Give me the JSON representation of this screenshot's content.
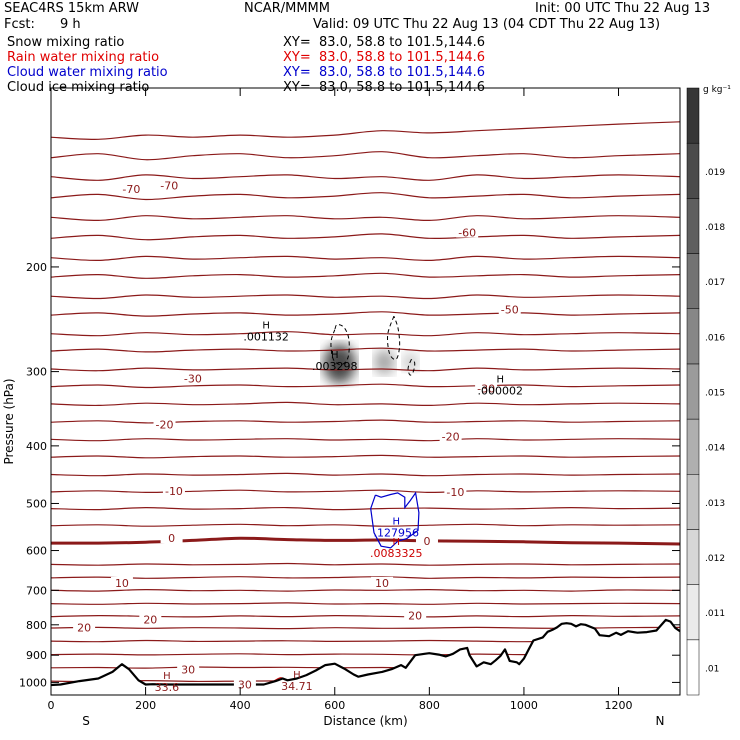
{
  "header": {
    "model": "SEAC4RS 15km ARW",
    "center": "NCAR/MMMM",
    "init": "Init: 00 UTC Thu 22 Aug 13",
    "fcst_label": "Fcst:",
    "fcst_value": "9 h",
    "valid": "Valid: 09 UTC Thu 22 Aug 13 (04 CDT Thu 22 Aug 13)",
    "fields": [
      {
        "label": "Snow mixing ratio",
        "xy": "XY=  83.0, 58.8 to 101.5,144.6",
        "color": "#000000"
      },
      {
        "label": "Rain water mixing ratio",
        "xy": "XY=  83.0, 58.8 to 101.5,144.6",
        "color": "#e00000"
      },
      {
        "label": "Cloud water mixing ratio",
        "xy": "XY=  83.0, 58.8 to 101.5,144.6",
        "color": "#0000cc"
      },
      {
        "label": "Cloud ice mixing ratio",
        "xy": "XY=  83.0, 58.8 to 101.5,144.6",
        "color": "#000000"
      }
    ]
  },
  "chart_data": {
    "type": "contour",
    "xlabel": "Distance (km)",
    "ylabel": "Pressure (hPa)",
    "xlim": [
      0,
      1330
    ],
    "ylim": [
      1050,
      100
    ],
    "y_scale": "log",
    "x_ticks": [
      0,
      200,
      400,
      600,
      800,
      1000,
      1200
    ],
    "y_ticks": [
      200,
      300,
      400,
      500,
      600,
      700,
      800,
      900,
      1000
    ],
    "x_end_labels": {
      "left": "S",
      "right": "N"
    },
    "colorbar": {
      "unit": "g kg⁻¹",
      "ticks": [
        ".01",
        ".011",
        ".012",
        ".013",
        ".014",
        ".015",
        ".016",
        ".017",
        ".018",
        ".019"
      ],
      "range": [
        0.01,
        0.0205
      ]
    },
    "colors": {
      "isotherm": "#8b1a1a",
      "rain": "#cc0000",
      "cloud_water": "#0000cc",
      "terrain": "#000000"
    },
    "isotherms": [
      {
        "value": 30,
        "p": [
          1045,
          1043,
          1046,
          1044,
          1043,
          1044,
          1042,
          1045,
          1046,
          1044,
          1045,
          1043,
          1044,
          1042
        ]
      },
      {
        "value": 30,
        "p": [
          995,
          997,
          993,
          996,
          995,
          994,
          996,
          995,
          993,
          994,
          996,
          995,
          994,
          995
        ]
      },
      {
        "value": 30,
        "p": [
          945,
          944,
          946,
          942,
          944,
          943,
          945,
          944,
          946,
          944,
          943,
          944,
          945,
          944
        ]
      },
      {
        "value": 20,
        "p": [
          898,
          896,
          899,
          897,
          895,
          898,
          896,
          897,
          899,
          896,
          898,
          896,
          897,
          896
        ]
      },
      {
        "value": 20,
        "p": [
          852,
          854,
          850,
          853,
          852,
          851,
          853,
          852,
          850,
          852,
          854,
          851,
          852,
          851
        ]
      },
      {
        "value": 20,
        "p": [
          810,
          808,
          811,
          809,
          810,
          812,
          809,
          811,
          810,
          808,
          810,
          811,
          809,
          808
        ]
      },
      {
        "value": 10,
        "p": [
          775,
          772,
          774,
          776,
          773,
          775,
          772,
          774,
          776,
          773,
          775,
          772,
          774,
          773
        ]
      },
      {
        "value": 10,
        "p": [
          737,
          739,
          736,
          738,
          737,
          735,
          738,
          737,
          739,
          736,
          738,
          737,
          736,
          737
        ]
      },
      {
        "value": 10,
        "p": [
          700,
          702,
          698,
          701,
          700,
          702,
          699,
          700,
          698,
          701,
          700,
          702,
          699,
          700
        ]
      },
      {
        "value": 10,
        "p": [
          667,
          665,
          668,
          666,
          664,
          667,
          666,
          664,
          668,
          666,
          667,
          665,
          666,
          665
        ]
      },
      {
        "value": 10,
        "p": [
          633,
          635,
          632,
          634,
          633,
          631,
          634,
          632,
          635,
          633,
          632,
          634,
          633,
          632
        ]
      },
      {
        "value": 0,
        "p": [
          583,
          583,
          581,
          577,
          572,
          575,
          577,
          576,
          578,
          579,
          580,
          582,
          583,
          585
        ],
        "bold": true
      },
      {
        "value": -10,
        "p": [
          545,
          543,
          546,
          544,
          542,
          545,
          543,
          546,
          544,
          542,
          545,
          543,
          544,
          543
        ]
      },
      {
        "value": -10,
        "p": [
          510,
          512,
          508,
          511,
          510,
          508,
          512,
          510,
          509,
          511,
          510,
          508,
          510,
          509
        ]
      },
      {
        "value": -10,
        "p": [
          478,
          476,
          479,
          477,
          475,
          478,
          477,
          475,
          479,
          476,
          478,
          477,
          476,
          477
        ]
      },
      {
        "value": -10,
        "p": [
          447,
          449,
          446,
          448,
          447,
          445,
          448,
          446,
          449,
          447,
          446,
          448,
          447,
          446
        ]
      },
      {
        "value": -20,
        "p": [
          418,
          416,
          419,
          417,
          416,
          418,
          417,
          415,
          418,
          417,
          416,
          418,
          417,
          416
        ]
      },
      {
        "value": -20,
        "p": [
          390,
          392,
          389,
          391,
          390,
          389,
          391,
          390,
          392,
          389,
          391,
          390,
          389,
          390
        ]
      },
      {
        "value": -20,
        "p": [
          365,
          363,
          366,
          364,
          363,
          365,
          364,
          362,
          365,
          364,
          363,
          365,
          364,
          363
        ]
      },
      {
        "value": -30,
        "p": [
          340,
          342,
          339,
          341,
          340,
          338,
          341,
          340,
          342,
          339,
          341,
          340,
          339,
          340
        ]
      },
      {
        "value": -30,
        "p": [
          318,
          316,
          319,
          317,
          316,
          318,
          317,
          315,
          318,
          317,
          316,
          318,
          317,
          316
        ]
      },
      {
        "value": -30,
        "p": [
          297,
          299,
          296,
          298,
          297,
          296,
          298,
          297,
          299,
          296,
          298,
          297,
          296,
          297
        ]
      },
      {
        "value": -40,
        "p": [
          277,
          275,
          278,
          276,
          275,
          277,
          276,
          274,
          277,
          276,
          275,
          277,
          276,
          275
        ]
      },
      {
        "value": -40,
        "p": [
          259,
          261,
          258,
          260,
          259,
          257,
          260,
          259,
          261,
          258,
          260,
          259,
          258,
          259
        ]
      },
      {
        "value": -50,
        "p": [
          241,
          239,
          242,
          240,
          239,
          241,
          240,
          238,
          241,
          240,
          239,
          241,
          240,
          239
        ]
      },
      {
        "value": -50,
        "p": [
          224,
          226,
          223,
          225,
          224,
          223,
          225,
          224,
          226,
          223,
          225,
          224,
          223,
          224
        ]
      },
      {
        "value": -60,
        "p": [
          208,
          206,
          209,
          207,
          206,
          208,
          207,
          205,
          208,
          207,
          206,
          208,
          207,
          206
        ]
      },
      {
        "value": -60,
        "p": [
          193,
          195,
          192,
          194,
          193,
          192,
          194,
          193,
          195,
          192,
          194,
          193,
          192,
          193
        ]
      },
      {
        "value": -60,
        "p": [
          179,
          177,
          180,
          178,
          177,
          179,
          178,
          176,
          179,
          178,
          177,
          179,
          178,
          177
        ]
      },
      {
        "value": -70,
        "p": [
          165,
          167,
          164,
          166,
          165,
          164,
          166,
          165,
          167,
          164,
          166,
          165,
          164,
          165
        ]
      },
      {
        "value": -70,
        "p": [
          153,
          151,
          154,
          152,
          151,
          153,
          152,
          150,
          153,
          152,
          151,
          153,
          152,
          151
        ]
      },
      {
        "value": -70,
        "p": [
          141,
          143,
          140,
          142,
          141,
          140,
          142,
          141,
          143,
          140,
          142,
          141,
          140,
          141
        ]
      },
      {
        "value": -70,
        "p": [
          131,
          129,
          132,
          130,
          129,
          131,
          130,
          128,
          131,
          130,
          129,
          131,
          130,
          129
        ]
      },
      {
        "value": -70,
        "p": [
          121,
          122,
          120,
          121,
          120,
          121,
          120,
          118,
          119,
          118,
          117,
          116,
          115,
          114
        ]
      }
    ],
    "isotherm_x": [
      0,
      100,
      200,
      300,
      400,
      500,
      600,
      700,
      800,
      900,
      1000,
      1100,
      1200,
      1330
    ],
    "isotherm_labels": [
      {
        "text": "-70",
        "x": 170,
        "p": 148
      },
      {
        "text": "-70",
        "x": 250,
        "p": 146
      },
      {
        "text": "-60",
        "x": 880,
        "p": 175
      },
      {
        "text": "-50",
        "x": 970,
        "p": 236
      },
      {
        "text": "-30",
        "x": 300,
        "p": 308
      },
      {
        "text": "-30",
        "x": 920,
        "p": 320
      },
      {
        "text": "-20",
        "x": 240,
        "p": 368
      },
      {
        "text": "-20",
        "x": 845,
        "p": 386
      },
      {
        "text": "-10",
        "x": 260,
        "p": 476
      },
      {
        "text": "-10",
        "x": 855,
        "p": 478
      },
      {
        "text": "0",
        "x": 255,
        "p": 572
      },
      {
        "text": "0",
        "x": 795,
        "p": 578
      },
      {
        "text": "10",
        "x": 150,
        "p": 680
      },
      {
        "text": "10",
        "x": 700,
        "p": 680
      },
      {
        "text": "20",
        "x": 70,
        "p": 808
      },
      {
        "text": "20",
        "x": 210,
        "p": 784
      },
      {
        "text": "20",
        "x": 770,
        "p": 772
      },
      {
        "text": "30",
        "x": 290,
        "p": 952
      },
      {
        "text": "30",
        "x": 410,
        "p": 1008
      }
    ],
    "snow_contours": [
      {
        "x": [
          600,
          592,
          597,
          614,
          628,
          630,
          620,
          605,
          600
        ],
        "p": [
          255,
          268,
          286,
          292,
          284,
          265,
          253,
          250,
          255
        ]
      },
      {
        "x": [
          725,
          712,
          716,
          730,
          737,
          734,
          725
        ],
        "p": [
          242,
          260,
          280,
          286,
          272,
          254,
          242
        ]
      },
      {
        "x": [
          762,
          755,
          759,
          766,
          769,
          762
        ],
        "p": [
          286,
          296,
          304,
          300,
          290,
          286
        ]
      }
    ],
    "cloud_water_contour": {
      "x": [
        686,
        676,
        683,
        698,
        718,
        734,
        752,
        776,
        778,
        771,
        760,
        748,
        748,
        733,
        718,
        698,
        686
      ],
      "p": [
        484,
        510,
        560,
        590,
        594,
        578,
        573,
        555,
        518,
        480,
        494,
        508,
        488,
        480,
        483,
        488,
        484
      ]
    },
    "rain_contour": {
      "x": [
        455,
        468,
        485,
        498,
        490,
        478,
        462
      ],
      "p": [
        1010,
        998,
        982,
        992,
        1000,
        1004,
        1010
      ]
    },
    "shading_blobs": [
      {
        "x": 610,
        "p": 291,
        "value": 0.019
      },
      {
        "x": 705,
        "p": 289,
        "value": 0.014
      },
      {
        "x": 760,
        "p": 289,
        "value": 0.012
      }
    ],
    "maxima": [
      {
        "text": ".001132",
        "x": 455,
        "p": 258,
        "color": "#000000"
      },
      {
        "text": ".003298",
        "x": 600,
        "p": 289,
        "color": "#000000"
      },
      {
        "text": ".000002",
        "x": 950,
        "p": 318,
        "color": "#000000"
      },
      {
        "text": ".127956",
        "x": 730,
        "p": 551,
        "color": "#0000cc"
      },
      {
        "text": ".0083325",
        "x": 730,
        "p": 596,
        "color": "#cc0000"
      },
      {
        "text": "33.6",
        "x": 245,
        "p": 1003,
        "color": "#8b1a1a"
      },
      {
        "text": "34.71",
        "x": 520,
        "p": 999,
        "color": "#8b1a1a"
      }
    ],
    "terrain": {
      "x": [
        0,
        20,
        60,
        100,
        130,
        150,
        165,
        185,
        200,
        215,
        250,
        300,
        350,
        400,
        450,
        475,
        490,
        500,
        520,
        540,
        560,
        580,
        600,
        620,
        640,
        650,
        670,
        700,
        720,
        740,
        750,
        770,
        790,
        800,
        820,
        835,
        850,
        865,
        880,
        885,
        900,
        915,
        930,
        940,
        950,
        960,
        970,
        985,
        990,
        1000,
        1010,
        1020,
        1040,
        1050,
        1060,
        1070,
        1080,
        1090,
        1100,
        1110,
        1120,
        1130,
        1150,
        1160,
        1180,
        1195,
        1205,
        1220,
        1240,
        1260,
        1280,
        1300,
        1310,
        1320,
        1330
      ],
      "p": [
        1010,
        1008,
        995,
        985,
        960,
        932,
        950,
        992,
        1008,
        1007,
        1008,
        1008,
        1008,
        1008,
        1008,
        995,
        985,
        992,
        985,
        972,
        955,
        935,
        930,
        948,
        970,
        978,
        970,
        960,
        950,
        935,
        945,
        900,
        895,
        893,
        898,
        904,
        895,
        880,
        875,
        900,
        940,
        925,
        932,
        918,
        903,
        880,
        920,
        925,
        932,
        912,
        880,
        850,
        840,
        822,
        816,
        808,
        797,
        795,
        797,
        805,
        798,
        800,
        812,
        833,
        836,
        825,
        832,
        820,
        825,
        823,
        818,
        785,
        790,
        810,
        820
      ]
    }
  }
}
